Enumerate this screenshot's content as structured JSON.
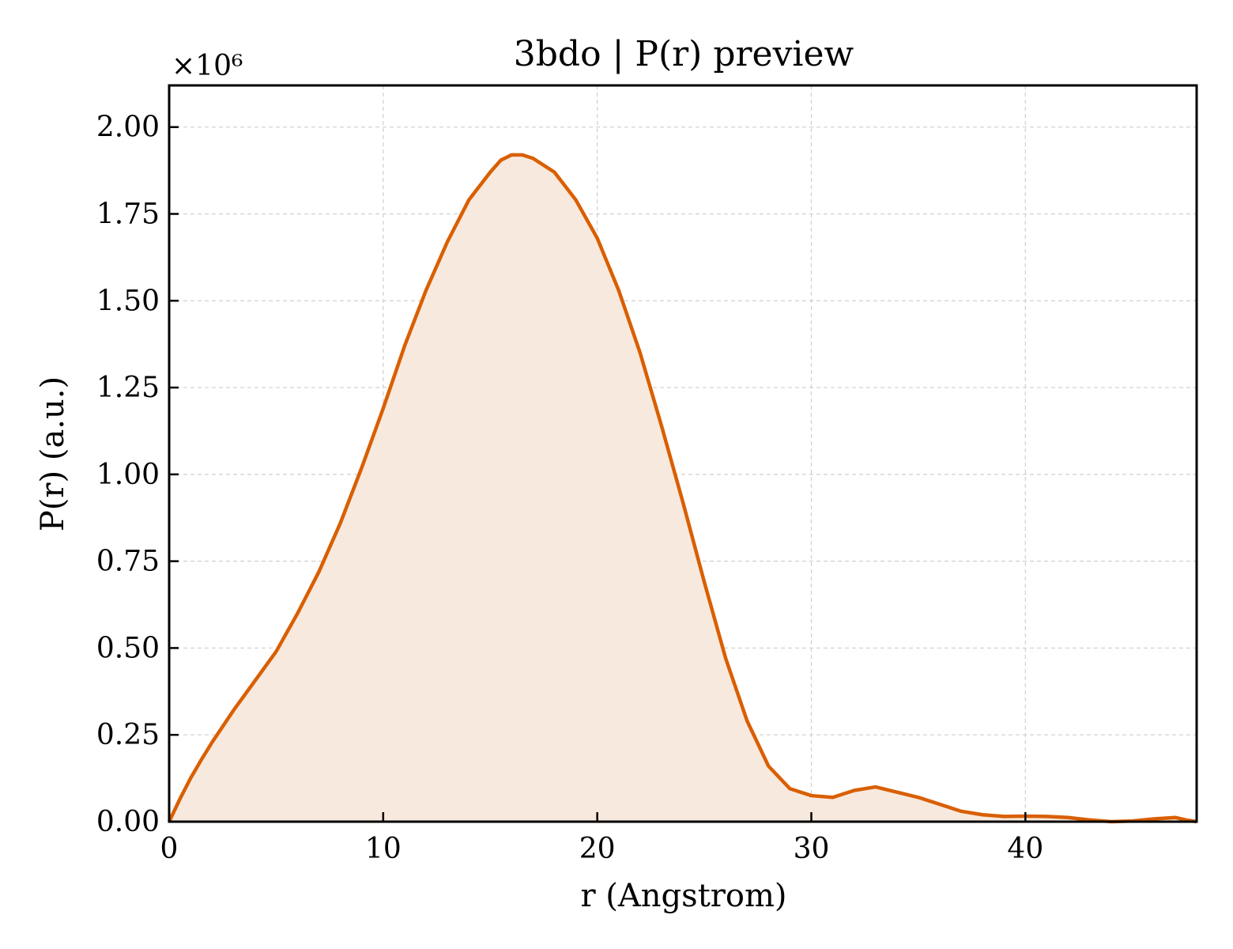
{
  "chart_data": {
    "type": "area",
    "title": "3bdo | P(r) preview",
    "xlabel": "r (Angstrom)",
    "ylabel": "P(r) (a.u.)",
    "y_offset_label": "×10⁶",
    "xlim": [
      0,
      48
    ],
    "ylim": [
      0,
      2.12
    ],
    "y_scale_factor": 1000000,
    "xticks": [
      0,
      10,
      20,
      30,
      40
    ],
    "xtick_labels": [
      "0",
      "10",
      "20",
      "30",
      "40"
    ],
    "yticks": [
      0,
      0.25,
      0.5,
      0.75,
      1.0,
      1.25,
      1.5,
      1.75,
      2.0
    ],
    "ytick_labels": [
      "0.00",
      "0.25",
      "0.50",
      "0.75",
      "1.00",
      "1.25",
      "1.50",
      "1.75",
      "2.00"
    ],
    "grid": true,
    "colors": {
      "line": "#d95f02",
      "fill": "#f8e9de",
      "grid": "#cfcfcf",
      "frame": "#000000"
    },
    "series": [
      {
        "x": [
          0,
          0.5,
          1,
          1.5,
          2,
          3,
          4,
          5,
          6,
          7,
          8,
          9,
          10,
          11,
          12,
          13,
          14,
          15,
          15.5,
          16,
          16.5,
          17,
          18,
          19,
          20,
          21,
          22,
          23,
          24,
          25,
          26,
          27,
          28,
          29,
          30,
          31,
          32,
          33,
          34,
          35,
          36,
          37,
          38,
          39,
          40,
          41,
          42,
          43,
          44,
          45,
          46,
          47,
          47.5,
          48
        ],
        "y": [
          0,
          0.065,
          0.125,
          0.178,
          0.228,
          0.32,
          0.405,
          0.49,
          0.6,
          0.72,
          0.86,
          1.02,
          1.19,
          1.37,
          1.53,
          1.67,
          1.79,
          1.87,
          1.905,
          1.92,
          1.92,
          1.91,
          1.87,
          1.79,
          1.68,
          1.53,
          1.35,
          1.14,
          0.92,
          0.69,
          0.47,
          0.29,
          0.16,
          0.095,
          0.075,
          0.07,
          0.09,
          0.1,
          0.085,
          0.07,
          0.05,
          0.03,
          0.02,
          0.015,
          0.016,
          0.015,
          0.012,
          0.005,
          0.0,
          0.002,
          0.008,
          0.012,
          0.005,
          0.0
        ]
      }
    ]
  }
}
